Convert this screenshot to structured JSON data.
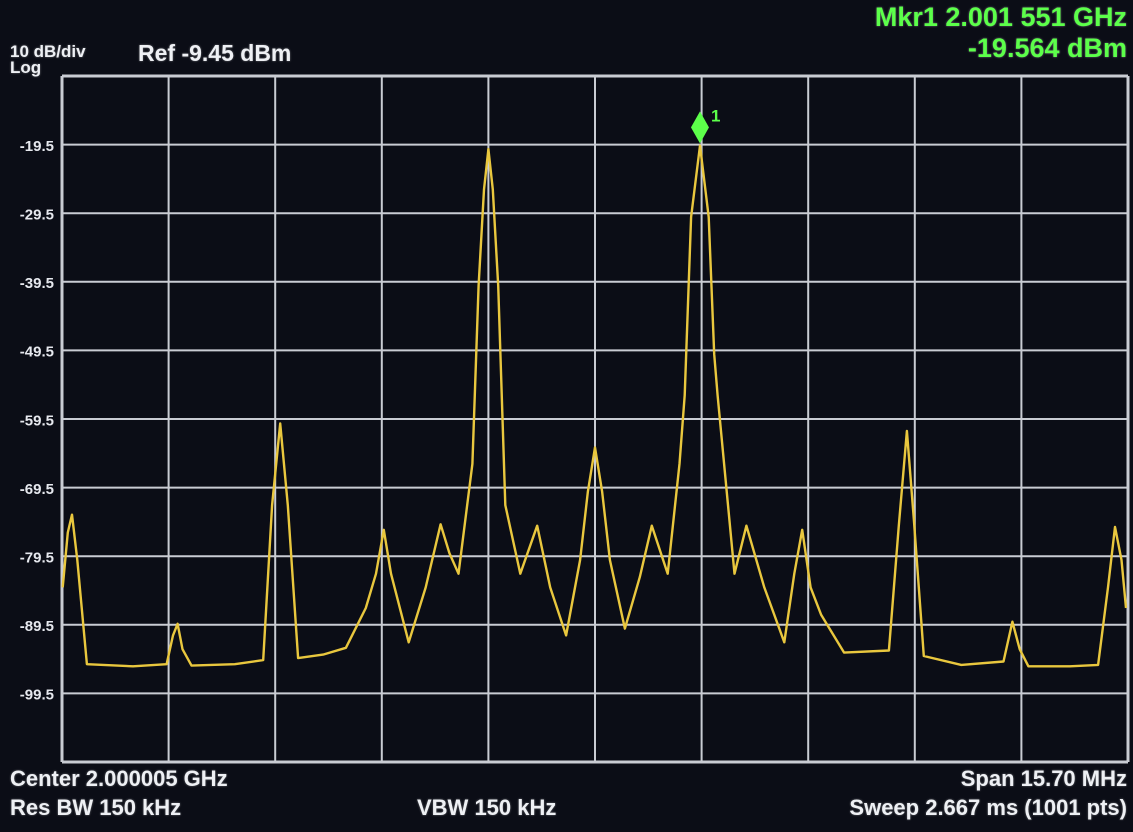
{
  "marker_readout": {
    "line1": "Mkr1 2.001 551 GHz",
    "line2": "-19.564 dBm"
  },
  "header": {
    "scale": "10 dB/div",
    "scale_mode": "Log",
    "ref": "Ref -9.45 dBm"
  },
  "footer": {
    "center": "Center 2.000005 GHz",
    "res_bw": "Res BW 150 kHz",
    "vbw": "VBW 150 kHz",
    "span": "Span 15.70 MHz",
    "sweep": "Sweep  2.667 ms (1001 pts)"
  },
  "colors": {
    "trace": "#e9c73e",
    "grid": "#c9ccd3",
    "marker": "#5cff4a",
    "background": "#0b0d16"
  },
  "chart_data": {
    "type": "line",
    "xlabel": "",
    "ylabel": "",
    "xlim_ghz": [
      1.992155,
      2.007855
    ],
    "ylim": [
      -109.45,
      -9.45
    ],
    "y_ticks": [
      "-19.5",
      "-29.5",
      "-39.5",
      "-49.5",
      "-59.5",
      "-69.5",
      "-79.5",
      "-89.5",
      "-99.5"
    ],
    "y_tick_values": [
      -19.5,
      -29.5,
      -39.5,
      -49.5,
      -59.5,
      -69.5,
      -79.5,
      -89.5,
      -99.5
    ],
    "x_divisions": 10,
    "grid": true,
    "marker": {
      "label": "1",
      "x": 2.001551,
      "y": -19.564
    },
    "series": [
      {
        "x": [
          1.992165,
          1.99224,
          1.992302,
          1.99238,
          1.992522,
          1.9932,
          1.993696,
          1.99379,
          1.993857,
          1.99393,
          1.994062,
          1.9947,
          1.995119,
          1.99525,
          1.995368,
          1.99548,
          1.995633,
          1.996,
          1.996337,
          1.99663,
          1.99678,
          1.996894,
          1.997,
          1.997261,
          1.997511,
          1.997731,
          1.99786,
          1.997995,
          1.9982,
          1.99829,
          1.99837,
          1.998435,
          1.9985,
          1.99858,
          1.998684,
          1.998905,
          1.999154,
          1.999345,
          1.99958,
          1.999785,
          1.9999,
          2.000005,
          2.00011,
          2.000225,
          2.000445,
          2.000665,
          2.000841,
          2.001076,
          2.00125,
          2.001326,
          2.00142,
          2.001551,
          2.00168,
          2.00176,
          2.00181,
          2.002059,
          2.002235,
          2.002499,
          2.002793,
          2.00294,
          2.003057,
          2.00318,
          2.003336,
          2.003673,
          2.004334,
          2.00448,
          2.004598,
          2.0047,
          2.004847,
          2.0054,
          2.006021,
          2.006153,
          2.00626,
          2.006388,
          2.007,
          2.007415,
          2.00756,
          2.007664,
          2.00776,
          2.007826
        ],
        "y": [
          -84,
          -76,
          -73.4,
          -80,
          -95.2,
          -95.5,
          -95.2,
          -91,
          -89.3,
          -93,
          -95.4,
          -95.2,
          -94.6,
          -72,
          -60.1,
          -72,
          -94.3,
          -93.8,
          -92.8,
          -87,
          -82,
          -75.6,
          -82,
          -92,
          -84,
          -74.8,
          -79,
          -82,
          -66,
          -40,
          -26,
          -20.1,
          -26,
          -40,
          -72,
          -82,
          -75,
          -84,
          -91,
          -80,
          -70,
          -63.6,
          -70,
          -80,
          -90,
          -82.5,
          -75,
          -82,
          -66,
          -56,
          -30,
          -19.6,
          -30,
          -50,
          -56,
          -82,
          -75,
          -84,
          -92,
          -82,
          -75.6,
          -84,
          -88,
          -93.5,
          -93.2,
          -75,
          -61.2,
          -74,
          -94,
          -95.3,
          -94.8,
          -89,
          -93,
          -95.5,
          -95.5,
          -95.3,
          -84,
          -75.2,
          -80,
          -87
        ]
      }
    ]
  }
}
